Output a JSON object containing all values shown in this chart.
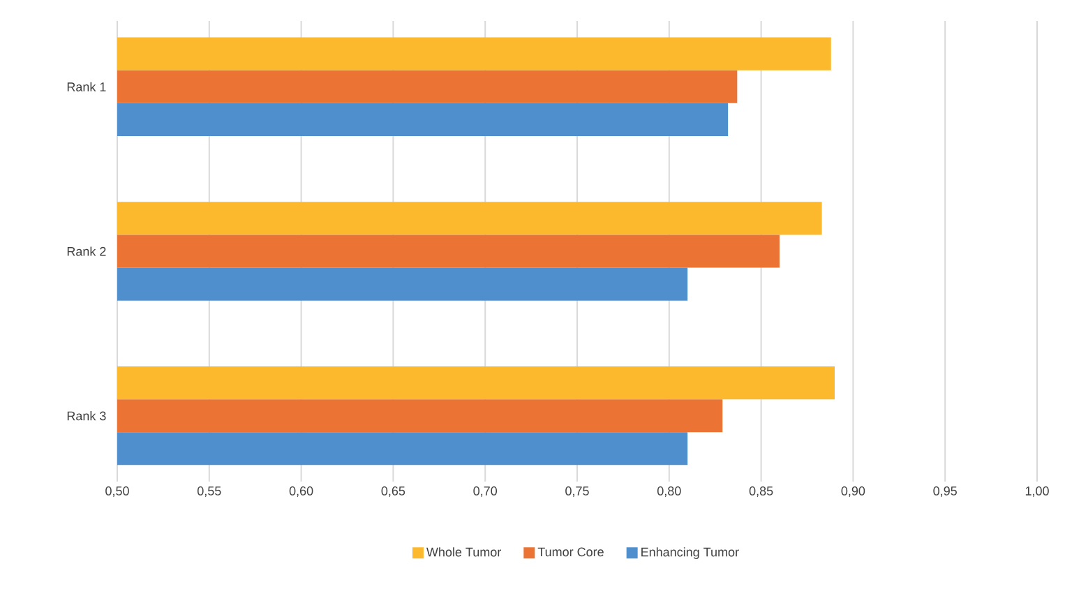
{
  "chart_data": {
    "type": "bar",
    "orientation": "horizontal",
    "categories": [
      "Rank 1",
      "Rank 2",
      "Rank 3"
    ],
    "series": [
      {
        "name": "Whole Tumor",
        "color": "#fdb92d",
        "values": [
          0.888,
          0.883,
          0.89
        ]
      },
      {
        "name": "Tumor Core",
        "color": "#eb7434",
        "values": [
          0.837,
          0.86,
          0.829
        ]
      },
      {
        "name": "Enhancing Tumor",
        "color": "#4f8fcd",
        "values": [
          0.832,
          0.81,
          0.81
        ]
      }
    ],
    "xlim": [
      0.5,
      1.0
    ],
    "xticks": [
      {
        "value": 0.5,
        "label": "0,50"
      },
      {
        "value": 0.55,
        "label": "0,55"
      },
      {
        "value": 0.6,
        "label": "0,60"
      },
      {
        "value": 0.65,
        "label": "0,65"
      },
      {
        "value": 0.7,
        "label": "0,70"
      },
      {
        "value": 0.75,
        "label": "0,75"
      },
      {
        "value": 0.8,
        "label": "0,80"
      },
      {
        "value": 0.85,
        "label": "0,85"
      },
      {
        "value": 0.9,
        "label": "0,90"
      },
      {
        "value": 0.95,
        "label": "0,95"
      },
      {
        "value": 1.0,
        "label": "1,00"
      }
    ],
    "grid": "x",
    "legend": "bottom"
  }
}
